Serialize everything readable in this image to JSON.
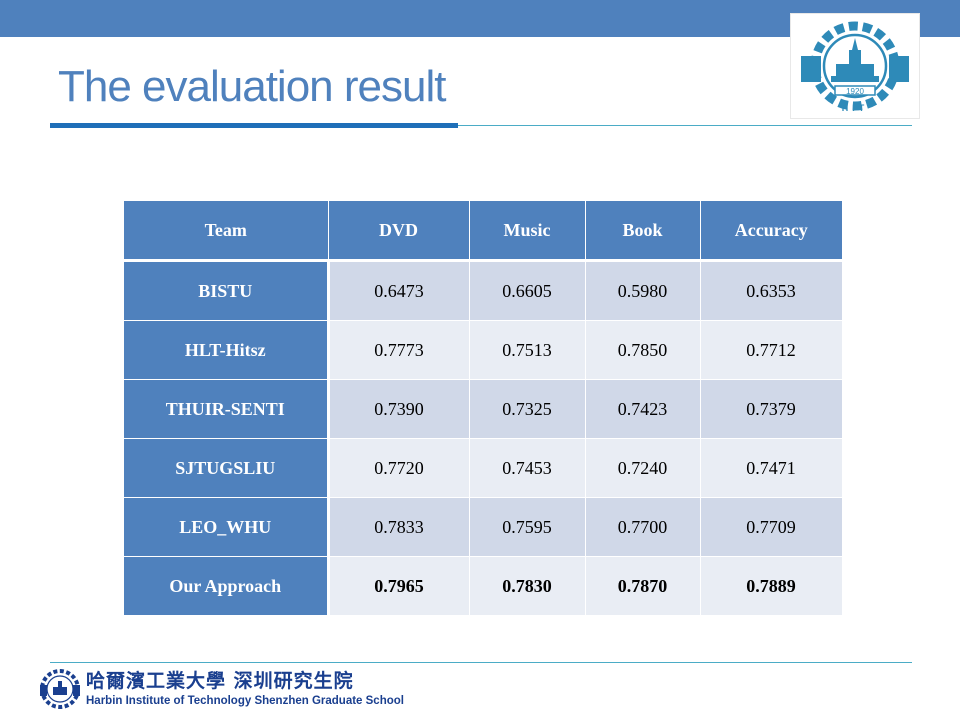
{
  "slide": {
    "title": "The evaluation result",
    "header_logo": {
      "icon": "hit-emblem-icon",
      "year": "1920",
      "letters": "HIT"
    }
  },
  "table": {
    "headers": [
      "Team",
      "DVD",
      "Music",
      "Book",
      "Accuracy"
    ],
    "rows": [
      {
        "team": "BISTU",
        "dvd": "0.6473",
        "music": "0.6605",
        "book": "0.5980",
        "accuracy": "0.6353"
      },
      {
        "team": "HLT-Hitsz",
        "dvd": "0.7773",
        "music": "0.7513",
        "book": "0.7850",
        "accuracy": "0.7712"
      },
      {
        "team": "THUIR-SENTI",
        "dvd": "0.7390",
        "music": "0.7325",
        "book": "0.7423",
        "accuracy": "0.7379"
      },
      {
        "team": "SJTUGSLIU",
        "dvd": "0.7720",
        "music": "0.7453",
        "book": "0.7240",
        "accuracy": "0.7471"
      },
      {
        "team": "LEO_WHU",
        "dvd": "0.7833",
        "music": "0.7595",
        "book": "0.7700",
        "accuracy": "0.7709"
      },
      {
        "team": "Our Approach",
        "dvd": "0.7965",
        "music": "0.7830",
        "book": "0.7870",
        "accuracy": "0.7889"
      }
    ]
  },
  "footer": {
    "institution_cn": "哈爾濱工業大學 深圳研究生院",
    "institution_en": "Harbin Institute of Technology Shenzhen Graduate School",
    "logo_icon": "hit-emblem-small-icon"
  },
  "colors": {
    "accent": "#4f81bd",
    "header_cell": "#4f81bd",
    "row_dark": "#d0d8e8",
    "row_light": "#e9edf4",
    "footer_text": "#1a3f8f"
  }
}
